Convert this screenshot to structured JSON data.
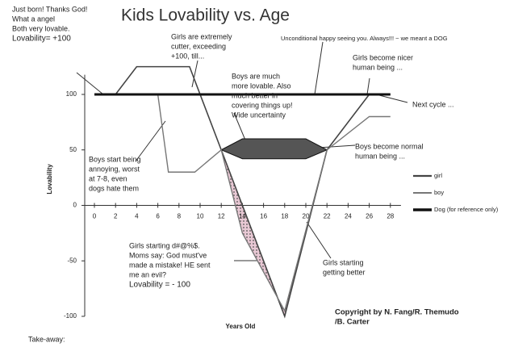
{
  "chart_data": {
    "type": "line",
    "title": "Kids Lovability vs. Age",
    "x_label": "Years Old",
    "y_label": "Lovability",
    "xlim": [
      0,
      29
    ],
    "ylim": [
      -100,
      125
    ],
    "xticks": [
      0,
      2,
      4,
      6,
      8,
      10,
      12,
      14,
      16,
      18,
      20,
      22,
      24,
      26,
      28
    ],
    "yticks": [
      100,
      50,
      0,
      -50,
      -100
    ],
    "series": [
      {
        "name": "girl",
        "color": "#444444",
        "x": [
          0,
          2,
          4,
          9,
          12,
          18,
          22,
          26,
          28
        ],
        "values": [
          100,
          100,
          125,
          125,
          50,
          -100,
          50,
          100,
          100
        ]
      },
      {
        "name": "boy",
        "color": "#777777",
        "x": [
          0,
          6,
          7,
          9.5,
          12,
          14,
          18,
          22,
          26,
          28
        ],
        "values": [
          100,
          100,
          30,
          30,
          50,
          -25,
          -95,
          50,
          80,
          80
        ]
      },
      {
        "name": "Dog (for reference only)",
        "color": "#111111",
        "x": [
          0,
          28
        ],
        "values": [
          100,
          100
        ]
      }
    ],
    "annotations": [
      [
        "Just born! Thanks God!",
        "What a angel",
        "Both very lovable.",
        "Lovability= +100"
      ],
      [
        "Girls are extremely",
        "cutter, exceeding",
        "+100, till..."
      ],
      [
        "Unconditional happy seeing you. Always!!! ~ we meant a DOG"
      ],
      [
        "Girls become nicer",
        "human being ..."
      ],
      [
        "Boys are much",
        "more lovable. Also",
        "much better in",
        "covering things up!",
        "Wide uncertainty"
      ],
      [
        "Next cycle ..."
      ],
      [
        "Boys start being",
        "annoying, worst",
        "at 7-8, even",
        "dogs hate them"
      ],
      [
        "Boys become normal",
        "human being ..."
      ],
      [
        "Girls starting d#@%$.",
        "Moms say: God must've",
        "made a mistake! HE sent",
        "me an evil?",
        "Lovability = - 100"
      ],
      [
        "Girls starting",
        "getting better"
      ],
      [
        "Copyright by N. Fang/R. Themudo",
        "/B. Carter"
      ],
      [
        "Take-away:"
      ]
    ]
  }
}
